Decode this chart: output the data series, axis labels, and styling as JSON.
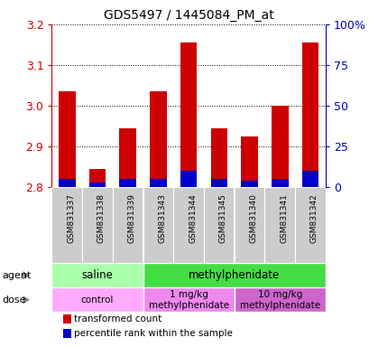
{
  "title": "GDS5497 / 1445084_PM_at",
  "samples": [
    "GSM831337",
    "GSM831338",
    "GSM831339",
    "GSM831343",
    "GSM831344",
    "GSM831345",
    "GSM831340",
    "GSM831341",
    "GSM831342"
  ],
  "transformed_counts": [
    3.035,
    2.845,
    2.945,
    3.035,
    3.155,
    2.945,
    2.925,
    3.0,
    3.155
  ],
  "percentile_ranks": [
    5,
    3,
    5,
    5,
    10,
    5,
    4,
    5,
    10
  ],
  "ymin": 2.8,
  "ymax": 3.2,
  "bar_base": 2.8,
  "red_color": "#cc0000",
  "blue_color": "#0000cc",
  "left_axis_color": "#cc0000",
  "right_axis_color": "#0000bb",
  "agent_groups": [
    {
      "label": "saline",
      "start": 0,
      "end": 3,
      "color": "#aaffaa"
    },
    {
      "label": "methylphenidate",
      "start": 3,
      "end": 9,
      "color": "#44dd44"
    }
  ],
  "dose_groups": [
    {
      "label": "control",
      "start": 0,
      "end": 3,
      "color": "#ffaaff"
    },
    {
      "label": "1 mg/kg\nmethylphenidate",
      "start": 3,
      "end": 6,
      "color": "#ee88ee"
    },
    {
      "label": "10 mg/kg\nmethylphenidate",
      "start": 6,
      "end": 9,
      "color": "#cc66cc"
    }
  ],
  "right_yticks": [
    0,
    25,
    50,
    75,
    100
  ],
  "right_ylabels": [
    "0",
    "25",
    "50",
    "75",
    "100%"
  ],
  "left_yticks": [
    2.8,
    2.9,
    3.0,
    3.1,
    3.2
  ],
  "percentile_scale_max": 100,
  "bar_width": 0.55,
  "legend_red": "transformed count",
  "legend_blue": "percentile rank within the sample",
  "xlabel_agent": "agent",
  "xlabel_dose": "dose",
  "sample_bg_color": "#cccccc",
  "sample_divider_color": "#ffffff"
}
